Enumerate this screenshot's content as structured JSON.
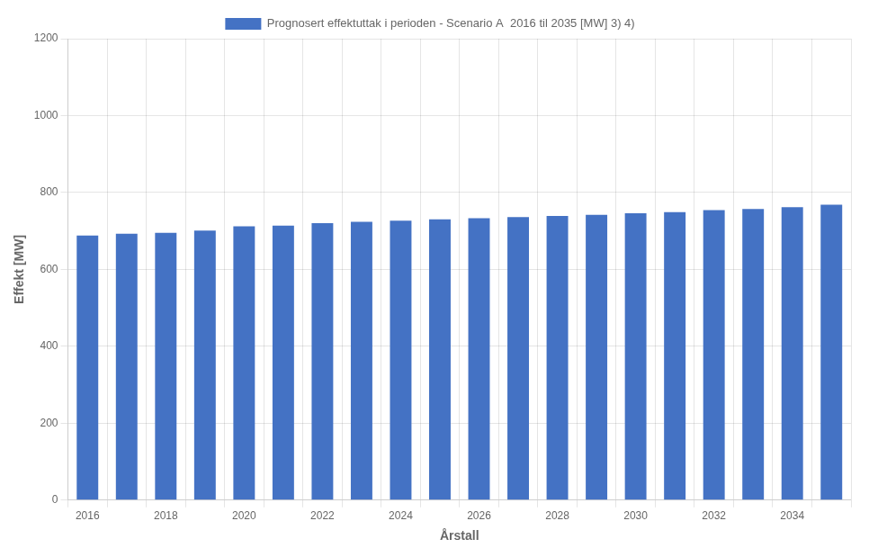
{
  "chart_data": {
    "type": "bar",
    "categories": [
      "2016",
      null,
      "2018",
      null,
      "2020",
      null,
      "2022",
      null,
      "2024",
      null,
      "2026",
      null,
      "2028",
      null,
      "2030",
      null,
      "2032",
      null,
      "2034",
      null
    ],
    "series": [
      {
        "name": "Prognosert effektuttak i perioden - Scenario A  2016 til 2035 [MW] 3) 4)",
        "color": "#4472C4",
        "values": [
          688,
          693,
          695,
          701,
          712,
          714,
          720,
          724,
          727,
          730,
          733,
          736,
          739,
          742,
          746,
          749,
          754,
          757,
          762,
          768
        ]
      }
    ],
    "xlabel": "Årstall",
    "ylabel": "Effekt [MW]",
    "ylim": [
      0,
      1200
    ],
    "yticks": [
      0,
      200,
      400,
      600,
      800,
      1000,
      1200
    ],
    "grid": true,
    "legend": "top"
  }
}
